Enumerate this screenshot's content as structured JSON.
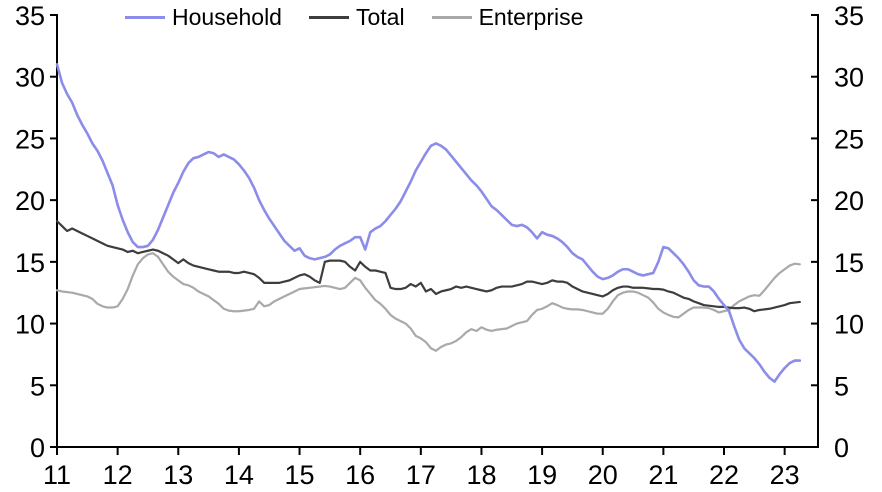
{
  "chart_data": {
    "type": "line",
    "title": "",
    "xlabel": "",
    "ylabel_left": "",
    "ylabel_right": "",
    "xlim": [
      11,
      23.55
    ],
    "ylim": [
      0,
      35
    ],
    "xticks": [
      11,
      12,
      13,
      14,
      15,
      16,
      17,
      18,
      19,
      20,
      21,
      22,
      23
    ],
    "yticks": [
      0,
      5,
      10,
      15,
      20,
      25,
      30,
      35
    ],
    "grid": false,
    "dual_axis": true,
    "legend_position": "top-center",
    "x_start": 11.0,
    "x_step": 0.0833,
    "axis_color": "#000000",
    "series": [
      {
        "name": "Household",
        "color": "#8c8cea",
        "width": 2.6,
        "values": [
          31.0,
          29.5,
          28.6,
          27.9,
          26.9,
          26.1,
          25.4,
          24.6,
          24.0,
          23.2,
          22.2,
          21.2,
          19.6,
          18.4,
          17.4,
          16.6,
          16.2,
          16.2,
          16.3,
          16.8,
          17.6,
          18.6,
          19.6,
          20.6,
          21.4,
          22.3,
          23.0,
          23.4,
          23.5,
          23.7,
          23.9,
          23.8,
          23.5,
          23.7,
          23.5,
          23.3,
          22.9,
          22.4,
          21.8,
          21.0,
          20.0,
          19.2,
          18.5,
          17.9,
          17.3,
          16.7,
          16.3,
          15.9,
          16.1,
          15.5,
          15.3,
          15.2,
          15.3,
          15.4,
          15.6,
          16.0,
          16.3,
          16.5,
          16.7,
          17.0,
          17.0,
          16.0,
          17.4,
          17.7,
          17.9,
          18.3,
          18.8,
          19.3,
          19.9,
          20.7,
          21.5,
          22.4,
          23.1,
          23.8,
          24.4,
          24.6,
          24.4,
          24.1,
          23.6,
          23.1,
          22.6,
          22.1,
          21.6,
          21.2,
          20.7,
          20.1,
          19.5,
          19.2,
          18.8,
          18.4,
          18.0,
          17.9,
          18.0,
          17.8,
          17.4,
          16.9,
          17.4,
          17.2,
          17.1,
          16.9,
          16.6,
          16.2,
          15.7,
          15.4,
          15.2,
          14.7,
          14.2,
          13.8,
          13.6,
          13.7,
          13.9,
          14.2,
          14.4,
          14.4,
          14.2,
          14.0,
          13.9,
          14.0,
          14.1,
          15.0,
          16.2,
          16.1,
          15.7,
          15.3,
          14.8,
          14.2,
          13.5,
          13.1,
          13.0,
          13.0,
          12.6,
          12.0,
          11.5,
          11.0,
          9.8,
          8.7,
          8.0,
          7.6,
          7.2,
          6.7,
          6.1,
          5.6,
          5.3,
          5.9,
          6.4,
          6.8,
          7.0,
          7.0
        ]
      },
      {
        "name": "Total",
        "color": "#3d3d3d",
        "width": 2.2,
        "values": [
          18.3,
          17.9,
          17.5,
          17.7,
          17.5,
          17.3,
          17.1,
          16.9,
          16.7,
          16.5,
          16.3,
          16.2,
          16.1,
          16.0,
          15.8,
          15.9,
          15.7,
          15.8,
          15.9,
          16.0,
          15.9,
          15.7,
          15.5,
          15.2,
          14.9,
          15.2,
          14.9,
          14.7,
          14.6,
          14.5,
          14.4,
          14.3,
          14.2,
          14.2,
          14.2,
          14.1,
          14.1,
          14.2,
          14.1,
          14.0,
          13.7,
          13.3,
          13.3,
          13.3,
          13.3,
          13.4,
          13.5,
          13.7,
          13.9,
          14.0,
          13.8,
          13.5,
          13.3,
          15.0,
          15.1,
          15.1,
          15.1,
          15.0,
          14.6,
          14.3,
          15.0,
          14.6,
          14.3,
          14.3,
          14.2,
          14.1,
          12.9,
          12.8,
          12.8,
          12.9,
          13.2,
          13.0,
          13.3,
          12.6,
          12.8,
          12.4,
          12.6,
          12.7,
          12.8,
          13.0,
          12.9,
          13.0,
          12.9,
          12.8,
          12.7,
          12.6,
          12.7,
          12.9,
          13.0,
          13.0,
          13.0,
          13.1,
          13.2,
          13.4,
          13.4,
          13.3,
          13.2,
          13.3,
          13.5,
          13.4,
          13.4,
          13.3,
          13.0,
          12.8,
          12.6,
          12.5,
          12.4,
          12.3,
          12.2,
          12.4,
          12.7,
          12.9,
          13.0,
          13.0,
          12.9,
          12.9,
          12.9,
          12.85,
          12.8,
          12.8,
          12.75,
          12.6,
          12.5,
          12.3,
          12.1,
          12.0,
          11.8,
          11.65,
          11.5,
          11.45,
          11.4,
          11.35,
          11.35,
          11.3,
          11.25,
          11.25,
          11.3,
          11.2,
          11.0,
          11.1,
          11.15,
          11.2,
          11.3,
          11.4,
          11.5,
          11.65,
          11.7,
          11.75
        ]
      },
      {
        "name": "Enterprise",
        "color": "#a9a9a9",
        "width": 2.2,
        "values": [
          12.7,
          12.6,
          12.55,
          12.5,
          12.4,
          12.3,
          12.2,
          12.0,
          11.6,
          11.4,
          11.3,
          11.3,
          11.4,
          12.0,
          12.8,
          13.9,
          14.8,
          15.3,
          15.6,
          15.7,
          15.4,
          14.8,
          14.2,
          13.8,
          13.5,
          13.2,
          13.1,
          12.9,
          12.6,
          12.4,
          12.2,
          11.9,
          11.6,
          11.2,
          11.05,
          11.0,
          11.0,
          11.05,
          11.1,
          11.2,
          11.8,
          11.4,
          11.5,
          11.8,
          12.0,
          12.2,
          12.4,
          12.6,
          12.8,
          12.85,
          12.9,
          12.95,
          13.0,
          13.05,
          13.0,
          12.9,
          12.8,
          12.9,
          13.3,
          13.7,
          13.5,
          12.9,
          12.4,
          11.9,
          11.6,
          11.2,
          10.7,
          10.4,
          10.2,
          10.0,
          9.6,
          9.0,
          8.8,
          8.5,
          8.0,
          7.8,
          8.1,
          8.3,
          8.4,
          8.6,
          8.9,
          9.3,
          9.55,
          9.4,
          9.7,
          9.5,
          9.4,
          9.5,
          9.55,
          9.6,
          9.8,
          10.0,
          10.1,
          10.2,
          10.7,
          11.1,
          11.2,
          11.4,
          11.65,
          11.5,
          11.3,
          11.2,
          11.15,
          11.15,
          11.1,
          11.0,
          10.9,
          10.8,
          10.8,
          11.2,
          11.8,
          12.3,
          12.5,
          12.6,
          12.6,
          12.5,
          12.3,
          12.1,
          11.7,
          11.2,
          10.9,
          10.7,
          10.55,
          10.5,
          10.8,
          11.1,
          11.3,
          11.3,
          11.3,
          11.25,
          11.1,
          10.9,
          11.0,
          11.1,
          11.5,
          11.8,
          12.0,
          12.2,
          12.3,
          12.25,
          12.7,
          13.2,
          13.7,
          14.1,
          14.4,
          14.7,
          14.85,
          14.8
        ]
      }
    ]
  }
}
